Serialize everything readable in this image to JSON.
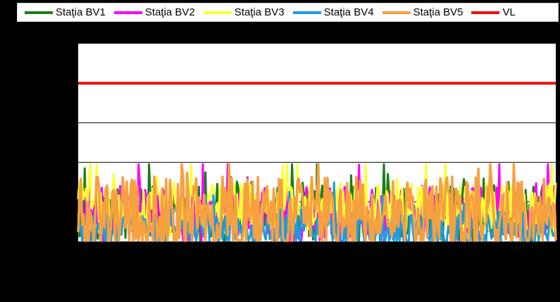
{
  "chart_data": {
    "type": "line",
    "title": "",
    "xlabel": "",
    "ylabel": "",
    "ylim": [
      0,
      5
    ],
    "grid": true,
    "legend_position": "top",
    "colors": {
      "background": "#000000",
      "plot_area": "#ffffff",
      "gridline": "#000000"
    },
    "series": [
      {
        "name": "Staţia BV1",
        "color": "#1a7f1a",
        "seed": 11,
        "mean": 0.7,
        "spread": 0.9
      },
      {
        "name": "Staţia BV2",
        "color": "#ff00ff",
        "seed": 23,
        "mean": 0.7,
        "spread": 0.9
      },
      {
        "name": "Staţia BV3",
        "color": "#ffff33",
        "seed": 37,
        "mean": 0.8,
        "spread": 0.9
      },
      {
        "name": "Staţia BV4",
        "color": "#1e9be0",
        "seed": 41,
        "mean": 0.25,
        "spread": 0.6
      },
      {
        "name": "Staţia BV5",
        "color": "#f7a040",
        "seed": 53,
        "mean": 0.6,
        "spread": 1.3
      }
    ],
    "reference_line": {
      "name": "VL",
      "color": "#e8140c",
      "value": 4
    },
    "n_points": 365
  }
}
